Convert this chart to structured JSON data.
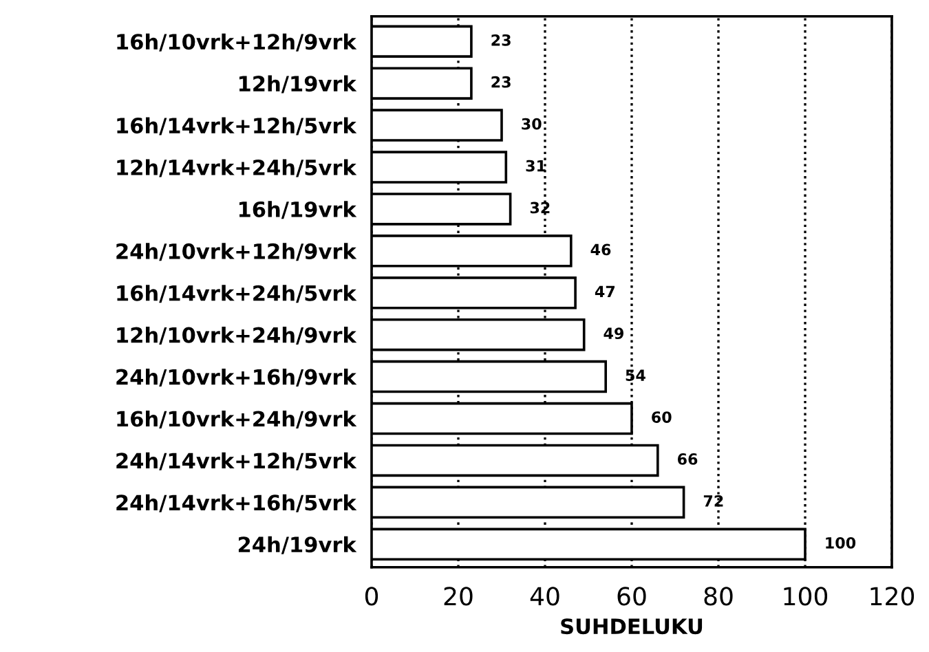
{
  "chart_data": {
    "type": "bar",
    "orientation": "horizontal",
    "xlabel": "SUHDELUKU",
    "categories": [
      "16h/10vrk+12h/9vrk",
      "12h/19vrk",
      "16h/14vrk+12h/5vrk",
      "12h/14vrk+24h/5vrk",
      "16h/19vrk",
      "24h/10vrk+12h/9vrk",
      "16h/14vrk+24h/5vrk",
      "12h/10vrk+24h/9vrk",
      "24h/10vrk+16h/9vrk",
      "16h/10vrk+24h/9vrk",
      "24h/14vrk+12h/5vrk",
      "24h/14vrk+16h/5vrk",
      "24h/19vrk"
    ],
    "values": [
      23,
      23,
      30,
      31,
      32,
      46,
      47,
      49,
      54,
      60,
      66,
      72,
      100
    ],
    "color": "#ffffff",
    "data_labels": true,
    "xlim": [
      0,
      120
    ],
    "xticks": [
      0,
      20,
      40,
      60,
      80,
      100,
      120
    ],
    "grid": "x",
    "legend": false
  }
}
